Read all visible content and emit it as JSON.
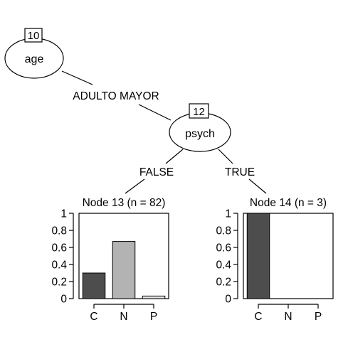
{
  "tree": {
    "root": {
      "id": "10",
      "variable": "age"
    },
    "root_edge_label": "ADULTO MAYOR",
    "inner": {
      "id": "12",
      "variable": "psych"
    },
    "edge_left_label": "FALSE",
    "edge_right_label": "TRUE"
  },
  "colors": {
    "bar_C": "#4d4d4d",
    "bar_N": "#b3b3b3",
    "bar_P": "#e6e6e6",
    "stroke": "#000000"
  },
  "chart_data": [
    {
      "type": "bar",
      "title": "Node 13 (n = 82)",
      "categories": [
        "C",
        "N",
        "P"
      ],
      "values": [
        0.3,
        0.67,
        0.03
      ],
      "yticks": [
        "0",
        "0.2",
        "0.4",
        "0.6",
        "0.8",
        "1"
      ],
      "ylim": [
        0,
        1
      ]
    },
    {
      "type": "bar",
      "title": "Node 14 (n = 3)",
      "categories": [
        "C",
        "N",
        "P"
      ],
      "values": [
        1.0,
        0.0,
        0.0
      ],
      "yticks": [
        "0",
        "0.2",
        "0.4",
        "0.6",
        "0.8",
        "1"
      ],
      "ylim": [
        0,
        1
      ]
    }
  ]
}
